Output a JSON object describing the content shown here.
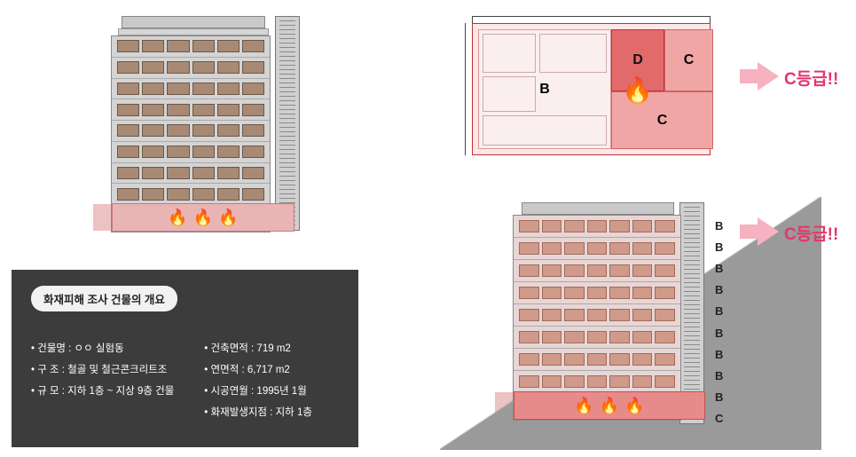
{
  "colors": {
    "bg": "#ffffff",
    "panel_dark": "#3c3c3c",
    "pill_bg": "#f2f2f2",
    "grade_text": "#e4356a",
    "arrow": "#f6b2c0",
    "zoneB": "#fbeeee",
    "zoneC": "#f1a6a6",
    "zoneD": "#e36a6a",
    "plan_border": "#b33",
    "tri": "#9a9a9a",
    "win_top": "#a88a74",
    "win_bottom": "#d09a8a",
    "gf_top": "#e9b4b4",
    "gf_bottom": "#e78a8a"
  },
  "topLeft": {
    "upper_floors": 8,
    "windows_per_floor": 6,
    "ground_fires": 3
  },
  "info": {
    "title": "화재피해 조사 건물의 개요",
    "left": [
      "건물명 : ㅇㅇ 실험동",
      "구   조 : 철골 및 철근콘크리트조",
      "규   모 : 지하 1층 ~ 지상 9층 건물"
    ],
    "right": [
      "건축면적 : 719 m2",
      "연면적 : 6,717 m2",
      "시공연월 : 1995년 1월",
      "화재발생지점 : 지하 1층"
    ]
  },
  "plan": {
    "zones": [
      {
        "key": "B",
        "label": "B"
      },
      {
        "key": "D",
        "label": "D"
      },
      {
        "key": "C1",
        "label": "C"
      },
      {
        "key": "C2",
        "label": "C"
      }
    ],
    "grade_text": "C등급!!"
  },
  "elev": {
    "upper_floors": 8,
    "windows_per_floor": 7,
    "ground_fires": 3,
    "floor_labels": [
      "B",
      "B",
      "B",
      "B",
      "B",
      "B",
      "B",
      "B",
      "B",
      "C"
    ],
    "grade_text": "C등급!!"
  }
}
